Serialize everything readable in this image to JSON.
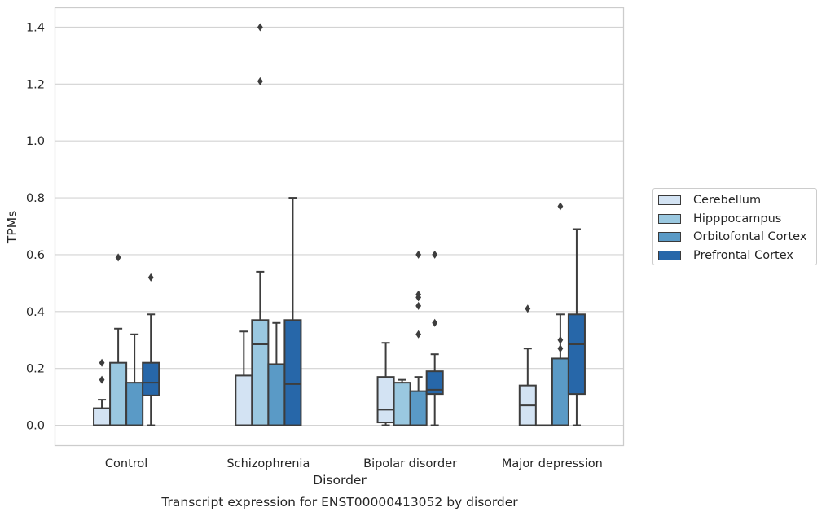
{
  "chart_data": {
    "type": "box",
    "title": "Transcript expression for ENST00000413052 by disorder",
    "xlabel": "Disorder",
    "ylabel": "TPMs",
    "ylim": [
      -0.07,
      1.47
    ],
    "yticks": [
      "0.0",
      "0.2",
      "0.4",
      "0.6",
      "0.8",
      "1.0",
      "1.2",
      "1.4"
    ],
    "grid": "horizontal",
    "legend_position": "right",
    "categories": [
      "Control",
      "Schizophrenia",
      "Bipolar disorder",
      "Major depression"
    ],
    "series": [
      {
        "name": "Cerebellum",
        "color": "#d3e3f3",
        "boxes": [
          {
            "whislo": 0.0,
            "q1": 0.0,
            "med": 0.0,
            "q3": 0.06,
            "whishi": 0.09,
            "fliers": [
              0.16,
              0.22
            ]
          },
          {
            "whislo": 0.0,
            "q1": 0.0,
            "med": 0.0,
            "q3": 0.175,
            "whishi": 0.33,
            "fliers": []
          },
          {
            "whislo": 0.0,
            "q1": 0.01,
            "med": 0.055,
            "q3": 0.17,
            "whishi": 0.29,
            "fliers": []
          },
          {
            "whislo": 0.0,
            "q1": 0.0,
            "med": 0.07,
            "q3": 0.14,
            "whishi": 0.27,
            "fliers": [
              0.41
            ]
          }
        ]
      },
      {
        "name": "Hipppocampus",
        "color": "#9ac8e0",
        "boxes": [
          {
            "whislo": 0.0,
            "q1": 0.0,
            "med": 0.0,
            "q3": 0.22,
            "whishi": 0.34,
            "fliers": [
              0.59
            ]
          },
          {
            "whislo": 0.0,
            "q1": 0.0,
            "med": 0.285,
            "q3": 0.37,
            "whishi": 0.54,
            "fliers": [
              1.21,
              1.4
            ]
          },
          {
            "whislo": 0.0,
            "q1": 0.0,
            "med": 0.0,
            "q3": 0.15,
            "whishi": 0.16,
            "fliers": []
          },
          {
            "whislo": 0.0,
            "q1": 0.0,
            "med": 0.0,
            "q3": 0.0,
            "whishi": 0.0,
            "fliers": []
          }
        ]
      },
      {
        "name": "Orbitofontal Cortex",
        "color": "#5a9ac6",
        "boxes": [
          {
            "whislo": 0.0,
            "q1": 0.0,
            "med": 0.0,
            "q3": 0.15,
            "whishi": 0.32,
            "fliers": []
          },
          {
            "whislo": 0.0,
            "q1": 0.0,
            "med": 0.0,
            "q3": 0.215,
            "whishi": 0.36,
            "fliers": []
          },
          {
            "whislo": 0.0,
            "q1": 0.0,
            "med": 0.0,
            "q3": 0.12,
            "whishi": 0.17,
            "fliers": [
              0.32,
              0.42,
              0.45,
              0.46,
              0.6
            ]
          },
          {
            "whislo": 0.0,
            "q1": 0.0,
            "med": 0.0,
            "q3": 0.235,
            "whishi": 0.39,
            "fliers": [
              0.27,
              0.3,
              0.77
            ]
          }
        ]
      },
      {
        "name": "Prefrontal Cortex",
        "color": "#2767a9",
        "boxes": [
          {
            "whislo": 0.0,
            "q1": 0.105,
            "med": 0.15,
            "q3": 0.22,
            "whishi": 0.39,
            "fliers": [
              0.52
            ]
          },
          {
            "whislo": 0.0,
            "q1": 0.0,
            "med": 0.145,
            "q3": 0.37,
            "whishi": 0.8,
            "fliers": []
          },
          {
            "whislo": 0.0,
            "q1": 0.11,
            "med": 0.125,
            "q3": 0.19,
            "whishi": 0.25,
            "fliers": [
              0.36,
              0.6
            ]
          },
          {
            "whislo": 0.0,
            "q1": 0.11,
            "med": 0.285,
            "q3": 0.39,
            "whishi": 0.69,
            "fliers": []
          }
        ]
      }
    ]
  }
}
